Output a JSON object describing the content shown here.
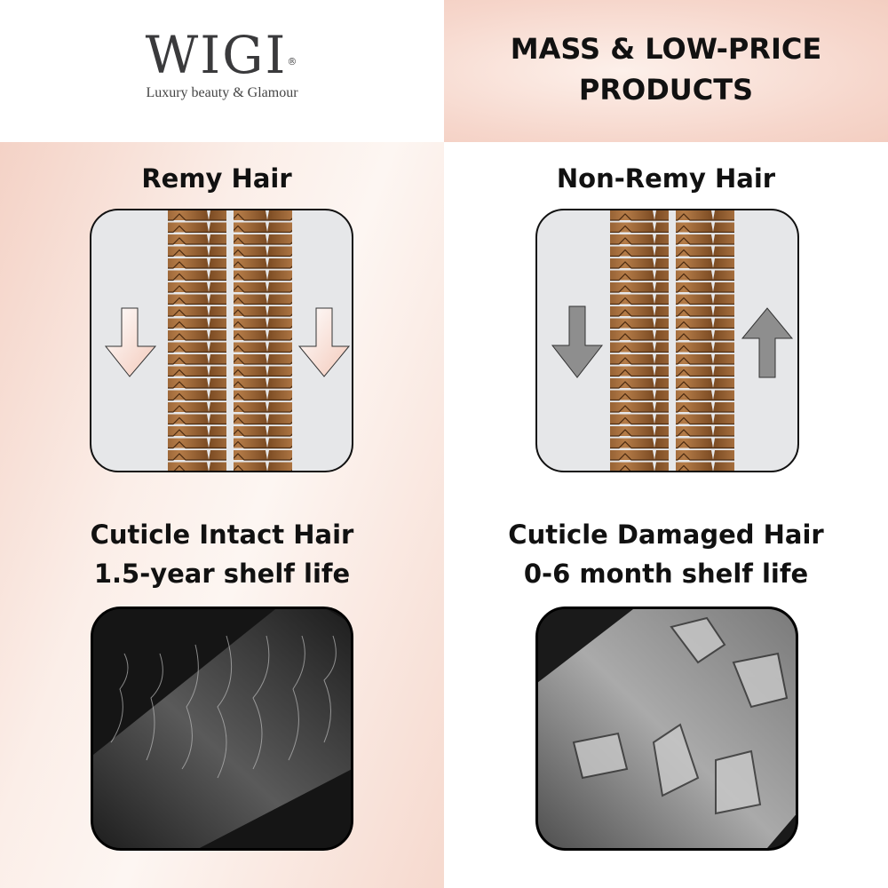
{
  "brand": {
    "name": "WIGI",
    "registered": "®",
    "tagline": "Luxury beauty & Glamour"
  },
  "header_right": {
    "line1": "MASS & LOW-PRICE",
    "line2": "PRODUCTS"
  },
  "left": {
    "title": "Remy Hair",
    "arrows": [
      "down",
      "down"
    ],
    "arrow_color": "#f8ddd2",
    "caption1": "Cuticle Intact Hair",
    "caption2": "1.5-year shelf life",
    "photo": "sem-intact-cuticle-hair"
  },
  "right": {
    "title": "Non-Remy Hair",
    "arrows": [
      "down",
      "up"
    ],
    "arrow_color": "#8e8e8e",
    "caption1": "Cuticle Damaged Hair",
    "caption2": "0-6 month shelf life",
    "photo": "sem-damaged-cuticle-hair"
  },
  "colors": {
    "accent_pink": "#f4d2c6",
    "hair_brown": "#a86f3e",
    "box_bg": "#e6e7e9"
  }
}
